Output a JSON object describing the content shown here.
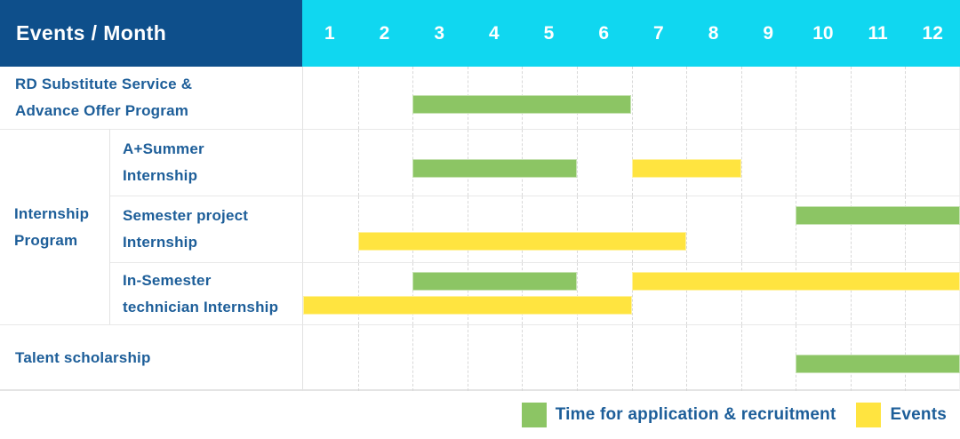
{
  "title_cell": "Events / Month",
  "colors": {
    "header_bg": "#0e4f8b",
    "months_bg": "#10d7f0",
    "bar_green": "#8cc564",
    "bar_yellow": "#ffe440",
    "label_text": "#1d5e99",
    "grid_line": "#d7d7d7",
    "row_line": "#e8e8e8"
  },
  "chart_data": {
    "type": "table",
    "subtype": "gantt-schedule",
    "title": "Events / Month",
    "x_label": "Month",
    "x_ticks": [
      "1",
      "2",
      "3",
      "4",
      "5",
      "6",
      "7",
      "8",
      "9",
      "10",
      "11",
      "12"
    ],
    "x_range": [
      1,
      12
    ],
    "grid": "dashed-vertical-month-lines",
    "legend_position": "bottom-right",
    "group_label": "Internship Program",
    "group_label_lines": [
      "Internship",
      "Program"
    ],
    "legend": [
      {
        "color_key": "bar_green",
        "color": "#8cc564",
        "label": "Time for application & recruitment"
      },
      {
        "color_key": "bar_yellow",
        "color": "#ffe440",
        "label": "Events"
      }
    ],
    "rows": [
      {
        "label": "RD Substitute Service & Advance Offer Program",
        "lines": [
          "RD Substitute Service &",
          "Advance Offer Program"
        ],
        "group": "",
        "bars": [
          {
            "type": "application",
            "color": "green",
            "start_month": 3,
            "end_month": 6,
            "track": "single"
          }
        ]
      },
      {
        "label": "A+Summer Internship",
        "lines": [
          "A+Summer",
          "Internship"
        ],
        "group": "Internship Program",
        "bars": [
          {
            "type": "application",
            "color": "green",
            "start_month": 3,
            "end_month": 5,
            "track": "single"
          },
          {
            "type": "event",
            "color": "yellow",
            "start_month": 7,
            "end_month": 8,
            "track": "single"
          }
        ]
      },
      {
        "label": "Semester project Internship",
        "lines": [
          "Semester project",
          "Internship"
        ],
        "group": "Internship Program",
        "bars": [
          {
            "type": "application",
            "color": "green",
            "start_month": 10,
            "end_month": 12,
            "track": "top"
          },
          {
            "type": "event",
            "color": "yellow",
            "start_month": 2,
            "end_month": 7,
            "track": "bottom"
          }
        ]
      },
      {
        "label": "In-Semester technician Internship",
        "lines": [
          "In-Semester",
          "technician Internship"
        ],
        "group": "Internship Program",
        "bars": [
          {
            "type": "application",
            "color": "green",
            "start_month": 3,
            "end_month": 5,
            "track": "top"
          },
          {
            "type": "event",
            "color": "yellow",
            "start_month": 7,
            "end_month": 12,
            "track": "top"
          },
          {
            "type": "event",
            "color": "yellow",
            "start_month": 1,
            "end_month": 6,
            "track": "bottom"
          }
        ]
      },
      {
        "label": "Talent scholarship",
        "lines": [
          "Talent scholarship"
        ],
        "group": "",
        "bars": [
          {
            "type": "application",
            "color": "green",
            "start_month": 10,
            "end_month": 12,
            "track": "single"
          }
        ]
      }
    ]
  }
}
